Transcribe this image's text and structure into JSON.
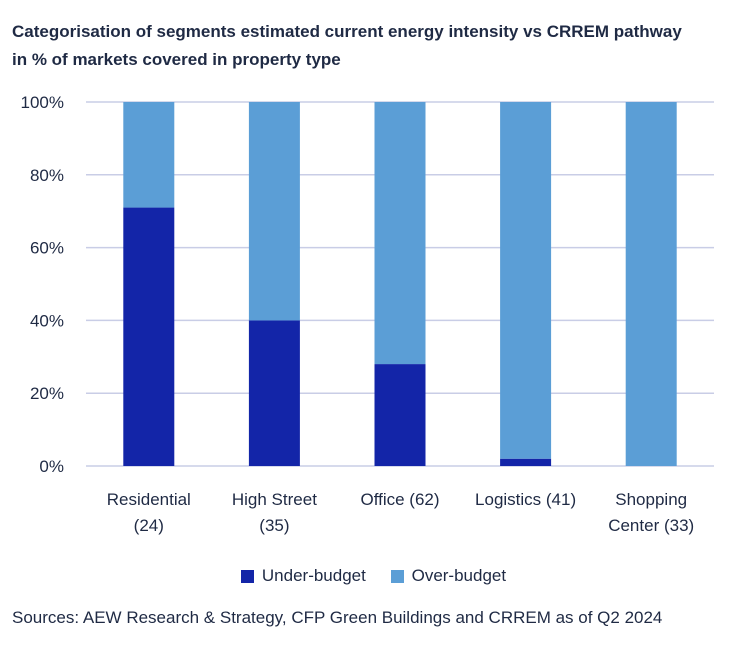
{
  "title_line1": "Categorisation of segments estimated current energy intensity vs CRREM pathway",
  "title_line2": "in % of markets covered in property type",
  "colors": {
    "under": "#1325a8",
    "over": "#5b9ed6",
    "grid": "#c9cde6",
    "text": "#1f2a44"
  },
  "chart_data": {
    "type": "bar",
    "stacked": true,
    "categories": [
      [
        "Residential",
        "(24)"
      ],
      [
        "High Street",
        "(35)"
      ],
      [
        "Office (62)"
      ],
      [
        "Logistics (41)"
      ],
      [
        "Shopping",
        "Center (33)"
      ]
    ],
    "series": [
      {
        "name": "Under-budget",
        "values": [
          71,
          40,
          28,
          2,
          0
        ]
      },
      {
        "name": "Over-budget",
        "values": [
          29,
          60,
          72,
          98,
          100
        ]
      }
    ],
    "ylim": [
      0,
      100
    ],
    "yticks": [
      "0%",
      "20%",
      "40%",
      "60%",
      "80%",
      "100%"
    ],
    "grid": true,
    "legend_position": "bottom"
  },
  "source": "Sources: AEW Research & Strategy, CFP Green Buildings and CRREM as of Q2 2024"
}
